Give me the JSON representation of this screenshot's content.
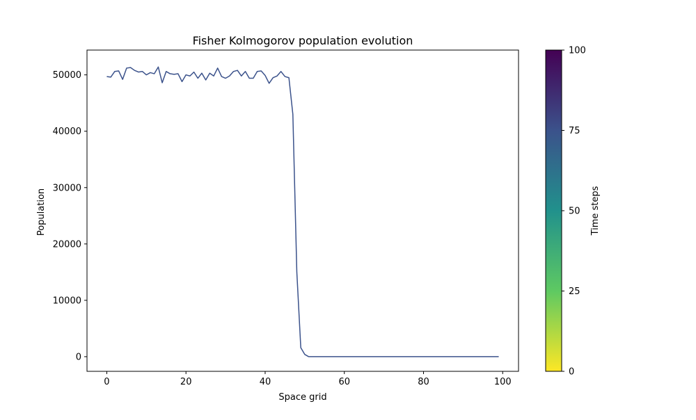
{
  "chart_data": {
    "type": "line",
    "title": "Fisher Kolmogorov population evolution",
    "xlabel": "Space grid",
    "ylabel": "Population",
    "xlim": [
      -5,
      104
    ],
    "ylim": [
      -2600,
      54400
    ],
    "xticks": [
      0,
      20,
      40,
      60,
      80,
      100
    ],
    "yticks": [
      0,
      10000,
      20000,
      30000,
      40000,
      50000
    ],
    "grid": false,
    "series": [
      {
        "color": "#3b528b",
        "x": [
          0,
          1,
          2,
          3,
          4,
          5,
          6,
          7,
          8,
          9,
          10,
          11,
          12,
          13,
          14,
          15,
          16,
          17,
          18,
          19,
          20,
          21,
          22,
          23,
          24,
          25,
          26,
          27,
          28,
          29,
          30,
          31,
          32,
          33,
          34,
          35,
          36,
          37,
          38,
          39,
          40,
          41,
          42,
          43,
          44,
          45,
          46,
          47,
          48,
          49,
          50,
          51,
          52,
          53,
          54,
          55,
          56,
          57,
          58,
          59,
          60,
          61,
          62,
          63,
          64,
          65,
          66,
          67,
          68,
          69,
          70,
          71,
          72,
          73,
          74,
          75,
          76,
          77,
          78,
          79,
          80,
          81,
          82,
          83,
          84,
          85,
          86,
          87,
          88,
          89,
          90,
          91,
          92,
          93,
          94,
          95,
          96,
          97,
          98,
          99
        ],
        "y": [
          49700,
          49600,
          50600,
          50700,
          49200,
          51200,
          51300,
          50800,
          50500,
          50600,
          50000,
          50400,
          50200,
          51400,
          48600,
          50600,
          50200,
          50100,
          50200,
          48800,
          50000,
          49800,
          50500,
          49400,
          50300,
          49100,
          50300,
          49800,
          51200,
          49700,
          49400,
          49800,
          50600,
          50800,
          49800,
          50600,
          49400,
          49400,
          50600,
          50700,
          49900,
          48500,
          49500,
          49800,
          50600,
          49700,
          49500,
          43000,
          15000,
          1600,
          400,
          0,
          0,
          0,
          0,
          0,
          0,
          0,
          0,
          0,
          0,
          0,
          0,
          0,
          0,
          0,
          0,
          0,
          0,
          0,
          0,
          0,
          0,
          0,
          0,
          0,
          0,
          0,
          0,
          0,
          0,
          0,
          0,
          0,
          0,
          0,
          0,
          0,
          0,
          0,
          0,
          0,
          0,
          0,
          0,
          0,
          0,
          0,
          0,
          0
        ]
      }
    ],
    "colorbar": {
      "label": "Time steps",
      "colormap": "viridis",
      "range": [
        0,
        100
      ],
      "ticks": [
        0,
        25,
        50,
        75,
        100
      ],
      "stops": [
        "#fde725",
        "#5ec962",
        "#21918c",
        "#3b528b",
        "#440154"
      ]
    }
  }
}
